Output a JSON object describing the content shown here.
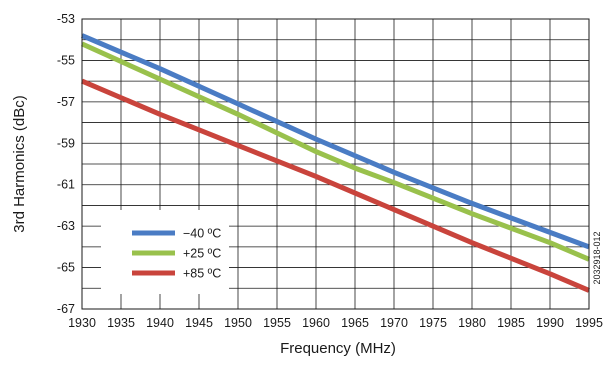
{
  "chart_data": {
    "type": "line",
    "title": "",
    "xlabel": "Frequency (MHz)",
    "ylabel": "3rd Harmonics (dBc)",
    "xlim": [
      1930,
      1995
    ],
    "ylim": [
      -67,
      -53
    ],
    "x_ticks": [
      1930,
      1935,
      1940,
      1945,
      1950,
      1955,
      1960,
      1965,
      1970,
      1975,
      1980,
      1985,
      1990,
      1995
    ],
    "y_ticks": [
      -53,
      -55,
      -57,
      -59,
      -61,
      -63,
      -65,
      -67
    ],
    "grid": true,
    "legend_position": "bottom-left",
    "series": [
      {
        "name": "−40 ºC",
        "color": "#4a7cc4",
        "x": [
          1930,
          1940,
          1950,
          1960,
          1970,
          1980,
          1990,
          1995
        ],
        "y": [
          -53.8,
          -55.4,
          -57.1,
          -58.8,
          -60.4,
          -61.9,
          -63.3,
          -64.0
        ]
      },
      {
        "name": "+25 ºC",
        "color": "#99c14c",
        "x": [
          1930,
          1940,
          1950,
          1960,
          1965,
          1970,
          1980,
          1990,
          1995
        ],
        "y": [
          -54.2,
          -55.9,
          -57.6,
          -59.4,
          -60.2,
          -60.9,
          -62.4,
          -63.8,
          -64.6
        ]
      },
      {
        "name": "+85 ºC",
        "color": "#c9443c",
        "x": [
          1930,
          1940,
          1950,
          1960,
          1970,
          1980,
          1990,
          1995
        ],
        "y": [
          -56.0,
          -57.6,
          -59.1,
          -60.6,
          -62.2,
          -63.8,
          -65.3,
          -66.1
        ]
      }
    ]
  },
  "figure_id": "2032918-012"
}
